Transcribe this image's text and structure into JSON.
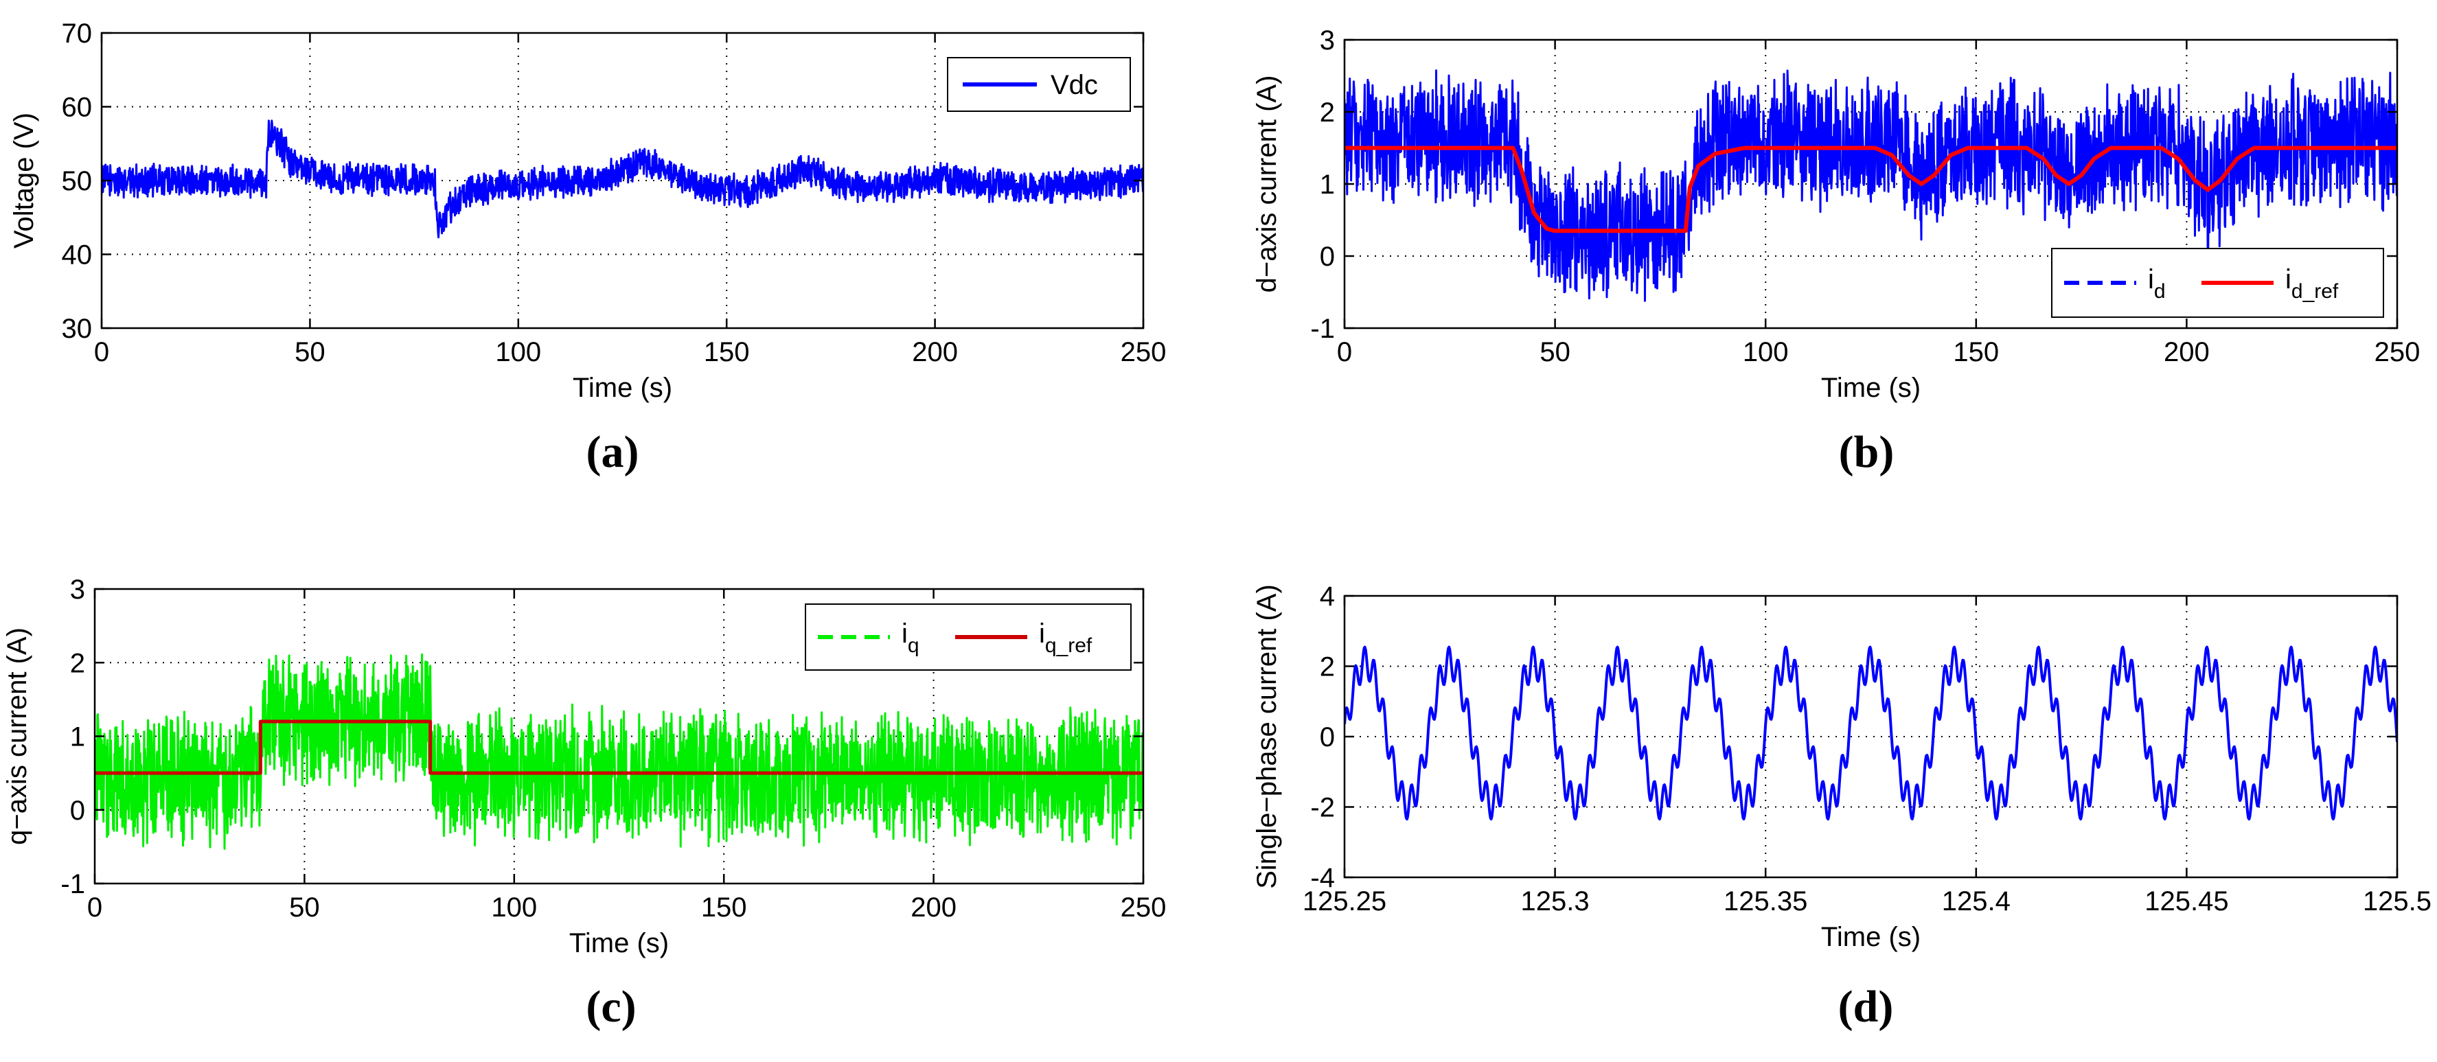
{
  "chart_data": [
    {
      "id": "a",
      "panel_label": "(a)",
      "type": "line",
      "xlabel": "Time (s)",
      "ylabel": "Voltage (V)",
      "xlim": [
        0,
        250
      ],
      "ylim": [
        30,
        70
      ],
      "xticks": [
        0,
        50,
        100,
        150,
        200,
        250
      ],
      "yticks": [
        30,
        40,
        50,
        60,
        70
      ],
      "grid": true,
      "legend_position": "top-right",
      "series": [
        {
          "name": "Vdc",
          "style": "noisy",
          "color": "#0000ff",
          "noise_amplitude": 2.5,
          "base_points": [
            [
              0,
              50
            ],
            [
              39.5,
              50
            ],
            [
              40,
              57
            ],
            [
              43,
              55
            ],
            [
              46,
              52
            ],
            [
              55,
              50.5
            ],
            [
              65,
              50
            ],
            [
              80,
              50
            ],
            [
              80.5,
              43
            ],
            [
              83,
              46
            ],
            [
              88,
              48.5
            ],
            [
              100,
              49.5
            ],
            [
              120,
              50
            ],
            [
              130,
              52.5
            ],
            [
              135,
              51.5
            ],
            [
              145,
              49
            ],
            [
              155,
              48.5
            ],
            [
              165,
              50.5
            ],
            [
              170,
              51.5
            ],
            [
              178,
              49.5
            ],
            [
              190,
              49
            ],
            [
              200,
              50.5
            ],
            [
              210,
              49.5
            ],
            [
              225,
              49
            ],
            [
              250,
              50
            ]
          ]
        }
      ]
    },
    {
      "id": "b",
      "panel_label": "(b)",
      "type": "line",
      "xlabel": "Time (s)",
      "ylabel": "d−axis current (A)",
      "xlim": [
        0,
        250
      ],
      "ylim": [
        -1,
        3
      ],
      "xticks": [
        0,
        50,
        100,
        150,
        200,
        250
      ],
      "yticks": [
        -1,
        0,
        1,
        2,
        3
      ],
      "grid": true,
      "legend_position": "bottom-right",
      "series": [
        {
          "name": "i",
          "subscript": "d",
          "style": "noisy",
          "color": "#0000ff",
          "noise_amplitude": 1.0,
          "base_points": [
            [
              0,
              1.6
            ],
            [
              40,
              1.6
            ],
            [
              45,
              0.6
            ],
            [
              50,
              0.35
            ],
            [
              80,
              0.35
            ],
            [
              82,
              1.1
            ],
            [
              88,
              1.5
            ],
            [
              100,
              1.6
            ],
            [
              125,
              1.6
            ],
            [
              130,
              1.6
            ],
            [
              137,
              1.1
            ],
            [
              145,
              1.45
            ],
            [
              155,
              1.6
            ],
            [
              165,
              1.45
            ],
            [
              172,
              1.1
            ],
            [
              180,
              1.45
            ],
            [
              190,
              1.6
            ],
            [
              198,
              1.45
            ],
            [
              205,
              0.9
            ],
            [
              212,
              1.3
            ],
            [
              220,
              1.55
            ],
            [
              250,
              1.6
            ]
          ]
        },
        {
          "name": "i",
          "subscript": "d_ref",
          "style": "smooth",
          "color": "#ff0000",
          "points": [
            [
              0,
              1.5
            ],
            [
              40,
              1.5
            ],
            [
              42,
              1.2
            ],
            [
              45,
              0.6
            ],
            [
              48,
              0.38
            ],
            [
              50,
              0.35
            ],
            [
              81,
              0.35
            ],
            [
              82,
              0.95
            ],
            [
              84,
              1.25
            ],
            [
              88,
              1.42
            ],
            [
              95,
              1.5
            ],
            [
              126,
              1.5
            ],
            [
              130,
              1.4
            ],
            [
              134,
              1.12
            ],
            [
              137,
              1.0
            ],
            [
              140,
              1.12
            ],
            [
              144,
              1.4
            ],
            [
              148,
              1.5
            ],
            [
              162,
              1.5
            ],
            [
              166,
              1.35
            ],
            [
              169,
              1.12
            ],
            [
              172,
              1.0
            ],
            [
              175,
              1.12
            ],
            [
              178,
              1.35
            ],
            [
              182,
              1.5
            ],
            [
              194,
              1.5
            ],
            [
              198,
              1.35
            ],
            [
              202,
              1.05
            ],
            [
              205,
              0.92
            ],
            [
              208,
              1.05
            ],
            [
              212,
              1.35
            ],
            [
              216,
              1.5
            ],
            [
              250,
              1.5
            ]
          ]
        }
      ]
    },
    {
      "id": "c",
      "panel_label": "(c)",
      "type": "line",
      "xlabel": "Time (s)",
      "ylabel": "q−axis current (A)",
      "xlim": [
        0,
        250
      ],
      "ylim": [
        -1,
        3
      ],
      "xticks": [
        0,
        50,
        100,
        150,
        200,
        250
      ],
      "yticks": [
        -1,
        0,
        1,
        2,
        3
      ],
      "grid": true,
      "legend_position": "top-right",
      "series": [
        {
          "name": "i",
          "subscript": "q",
          "style": "noisy",
          "color": "#00ee00",
          "noise_amplitude": 1.0,
          "base_points": [
            [
              0,
              0.45
            ],
            [
              39.8,
              0.45
            ],
            [
              40,
              1.2
            ],
            [
              80,
              1.2
            ],
            [
              80.2,
              0.45
            ],
            [
              250,
              0.45
            ]
          ]
        },
        {
          "name": "i",
          "subscript": "q_ref",
          "style": "step",
          "color": "#cc0000",
          "points": [
            [
              0,
              0.5
            ],
            [
              39.5,
              0.5
            ],
            [
              39.5,
              1.2
            ],
            [
              80,
              1.2
            ],
            [
              80,
              0.5
            ],
            [
              250,
              0.5
            ]
          ]
        }
      ]
    },
    {
      "id": "d",
      "panel_label": "(d)",
      "type": "line",
      "xlabel": "Time (s)",
      "ylabel": "Single−phase current (A)",
      "xlim": [
        125.25,
        125.5
      ],
      "ylim": [
        -4,
        4
      ],
      "xticks": [
        125.25,
        125.3,
        125.35,
        125.4,
        125.45,
        125.5
      ],
      "xtick_labels": [
        "125.25",
        "125.3",
        "125.35",
        "125.4",
        "125.45",
        "125.5"
      ],
      "yticks": [
        -4,
        -2,
        0,
        2,
        4
      ],
      "grid": true,
      "legend_position": "none",
      "series": [
        {
          "name": "single-phase current",
          "style": "waveform",
          "color": "#0000ff",
          "frequency_hz": 50,
          "amplitude": 2.0,
          "ripple_amplitude": 0.45,
          "ripple_harmonic": 9,
          "offset": 0.1
        }
      ]
    }
  ]
}
